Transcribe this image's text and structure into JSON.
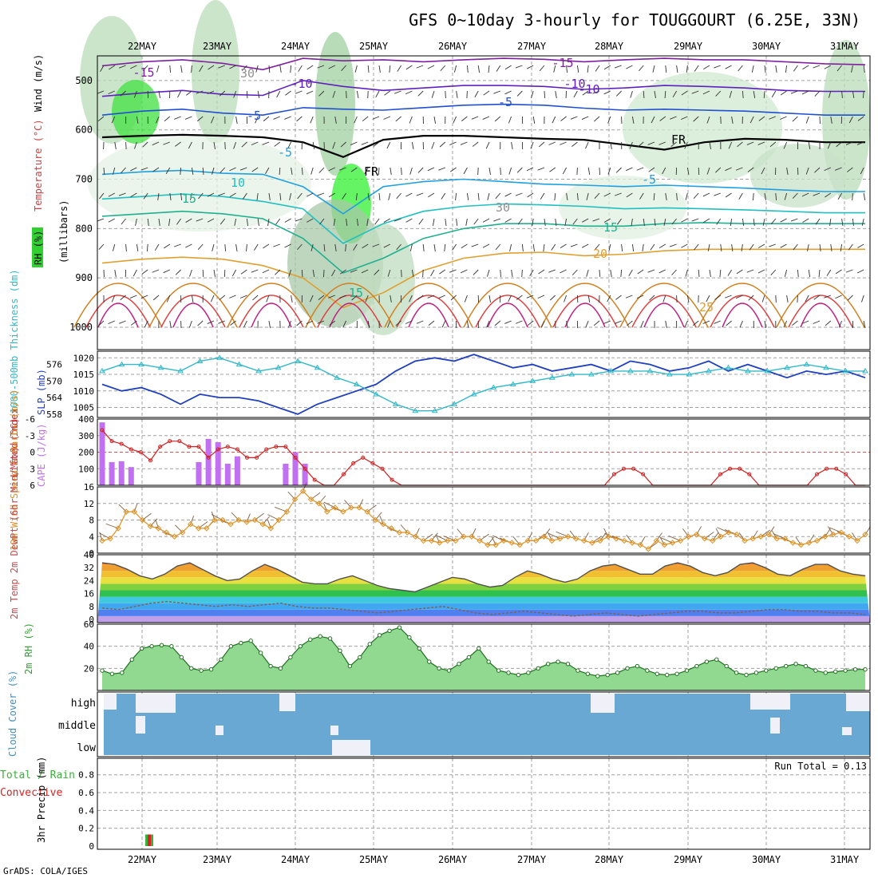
{
  "page": {
    "title": "GFS 0~10day 3-hourly for TOUGGOURT (6.25E, 33N)",
    "credit": "GrADS: COLA/IGES"
  },
  "colors": {
    "frame": "#000000",
    "grid": "#a0a0a0",
    "slp": "#2040c0",
    "thickness": "#30b8c8",
    "cape": "#c070f0",
    "lifted": "#d02020",
    "wind_speed": "#e09020",
    "barb": "#806040",
    "rh_fill": "#5ac85a",
    "rh_light": "#d6ecd6",
    "cloud": "#6aa8d4",
    "precip_total": "#3cb03c",
    "precip_conv": "#e02020"
  },
  "chart_data": [
    {
      "id": "upper-air",
      "type": "heatmap",
      "ylabel_parts": [
        "RH (%)",
        "Temperature (°C)",
        "Wind (m/s)"
      ],
      "axis_label": "(millibars)",
      "x_ticks": [
        "22MAY",
        "23MAY",
        "24MAY",
        "25MAY",
        "26MAY",
        "27MAY",
        "28MAY",
        "29MAY",
        "30MAY",
        "31MAY"
      ],
      "ylim": [
        450,
        1000
      ],
      "yticks": [
        500,
        600,
        700,
        800,
        900,
        1000
      ],
      "contour_labels": [
        "-15",
        "-15",
        "-10",
        "-10",
        "-5",
        "-5",
        "FR",
        "FR",
        "-5",
        "-5",
        "-10",
        "10",
        "15",
        "15",
        "15",
        "20",
        "25",
        "30",
        "30"
      ],
      "isotherms": [
        {
          "label": "-15",
          "color": "#8020a0",
          "p": [
            470,
            462,
            458,
            465,
            478,
            455,
            460,
            458,
            462,
            458,
            455,
            457,
            462,
            458,
            455,
            458,
            458,
            462,
            466,
            468
          ]
        },
        {
          "label": "-10",
          "color": "#6020c0",
          "p": [
            532,
            525,
            520,
            528,
            530,
            500,
            512,
            520,
            515,
            510,
            510,
            512,
            518,
            515,
            510,
            512,
            515,
            520,
            522,
            522
          ]
        },
        {
          "label": "-5",
          "color": "#2050d0",
          "p": [
            570,
            562,
            558,
            566,
            570,
            555,
            558,
            560,
            555,
            550,
            548,
            550,
            556,
            560,
            558,
            560,
            562,
            566,
            570,
            570
          ]
        },
        {
          "label": "FR",
          "color": "#000000",
          "p": [
            615,
            612,
            610,
            612,
            615,
            625,
            655,
            620,
            612,
            612,
            615,
            618,
            620,
            630,
            640,
            625,
            618,
            620,
            625,
            625
          ]
        },
        {
          "label": "-5",
          "color": "#20a0e0",
          "p": [
            690,
            685,
            682,
            688,
            690,
            715,
            770,
            715,
            705,
            700,
            705,
            710,
            712,
            715,
            712,
            715,
            718,
            722,
            725,
            725
          ]
        },
        {
          "label": "10",
          "color": "#20c0c0",
          "p": [
            740,
            735,
            730,
            735,
            745,
            760,
            830,
            790,
            765,
            755,
            750,
            752,
            755,
            760,
            758,
            760,
            762,
            765,
            768,
            768
          ]
        },
        {
          "label": "15",
          "color": "#20b090",
          "p": [
            775,
            770,
            765,
            770,
            780,
            820,
            890,
            860,
            820,
            800,
            790,
            790,
            795,
            795,
            790,
            788,
            790,
            790,
            790,
            790
          ]
        },
        {
          "label": "20",
          "color": "#e0a030",
          "p": [
            870,
            862,
            858,
            862,
            875,
            900,
            960,
            930,
            885,
            860,
            850,
            848,
            855,
            852,
            845,
            842,
            842,
            842,
            842,
            842
          ]
        }
      ]
    },
    {
      "id": "slp-thickness",
      "type": "line",
      "ylabel_left": "1000-500mb Thickness (dm)",
      "ylabel_right": "SLP (mb)",
      "left_ticks": [
        "576",
        "570",
        "564",
        "558"
      ],
      "right_ticks": [
        "1020",
        "1015",
        "1010",
        "1005"
      ],
      "ylim": [
        1002,
        1022
      ],
      "series": [
        {
          "name": "SLP",
          "values": [
            1012,
            1010,
            1011,
            1009,
            1006,
            1009,
            1008,
            1008,
            1007,
            1005,
            1003,
            1006,
            1008,
            1010,
            1012,
            1016,
            1019,
            1020,
            1019,
            1021,
            1019,
            1017,
            1018,
            1016,
            1017,
            1018,
            1016,
            1019,
            1018,
            1016,
            1017,
            1019,
            1016,
            1018,
            1016,
            1014,
            1016,
            1015,
            1016,
            1014
          ]
        },
        {
          "name": "Thickness",
          "values": [
            1016,
            1018,
            1018,
            1017,
            1016,
            1019,
            1020,
            1018,
            1016,
            1017,
            1019,
            1017,
            1014,
            1012,
            1009,
            1006,
            1004,
            1004,
            1006,
            1009,
            1011,
            1012,
            1013,
            1014,
            1015,
            1015,
            1016,
            1016,
            1016,
            1015,
            1015,
            1016,
            1017,
            1016,
            1016,
            1017,
            1018,
            1017,
            1016,
            1016
          ]
        }
      ]
    },
    {
      "id": "cape-lifted",
      "type": "bar",
      "ylabel_left": "Lifted Index",
      "ylabel_right": "CAPE (J/kg)",
      "left_ticks": [
        "-6",
        "-3",
        "0",
        "3",
        "6"
      ],
      "right_ticks": [
        "400",
        "300",
        "200",
        "100"
      ],
      "ylim": [
        0,
        400
      ],
      "cape_values": [
        380,
        140,
        145,
        110,
        0,
        0,
        0,
        0,
        0,
        0,
        140,
        280,
        260,
        130,
        175,
        0,
        0,
        0,
        0,
        130,
        200,
        130,
        0,
        0,
        0,
        0,
        0,
        0,
        0,
        0,
        0,
        0,
        0,
        0,
        0,
        0,
        0,
        0,
        0,
        0,
        0,
        0,
        0,
        0,
        0,
        0,
        0,
        0,
        0,
        0,
        0,
        0,
        0,
        0,
        0,
        0,
        0,
        0,
        0,
        0,
        0,
        0,
        0,
        0,
        0,
        0,
        0,
        0,
        0,
        0,
        0,
        0,
        0,
        0,
        0,
        0,
        0,
        0,
        0,
        0
      ],
      "lifted_index": [
        -4,
        -2,
        -1.5,
        -0.5,
        0,
        1.5,
        -1,
        -2,
        -2,
        -1,
        -1,
        1,
        -0.5,
        -1,
        -0.5,
        1,
        1,
        -0.5,
        -1,
        -1,
        1,
        3,
        5,
        7,
        6,
        4,
        2,
        1,
        2,
        3,
        5,
        7,
        7,
        7,
        7,
        7,
        7,
        7,
        7,
        7,
        7,
        7,
        7,
        7,
        7,
        7,
        7,
        7,
        7,
        7,
        7,
        7,
        6,
        4,
        3,
        3,
        4,
        6,
        7,
        7,
        7,
        7,
        7,
        6,
        4,
        3,
        3,
        4,
        6,
        7,
        7,
        7,
        7,
        6,
        4,
        3,
        3,
        4,
        6,
        7
      ]
    },
    {
      "id": "wind10m",
      "type": "line",
      "ylabel": "10m Wind Speed & Barbs (m/s)",
      "yticks": [
        "16",
        "12",
        "8",
        "4",
        "0"
      ],
      "ylim": [
        0,
        16
      ],
      "values": [
        3,
        3.5,
        6,
        10,
        10,
        8,
        6.5,
        6,
        5,
        4,
        5,
        7,
        6,
        6,
        8,
        8,
        7,
        8,
        7.5,
        8,
        7,
        6,
        8,
        10,
        13,
        15,
        13,
        12,
        10,
        11,
        10,
        11,
        11,
        10,
        8,
        7,
        6,
        5,
        5,
        4,
        3,
        3,
        2.5,
        3,
        3,
        4,
        4,
        3,
        2,
        2,
        3,
        2.5,
        2,
        3,
        3,
        4,
        3,
        3.5,
        4,
        3.5,
        3,
        2.5,
        3,
        4,
        3.5,
        3,
        2.5,
        2,
        1,
        3,
        2,
        2.5,
        3,
        4,
        4.5,
        3.5,
        3,
        4,
        5,
        4.5,
        3,
        3.5,
        4,
        4.5,
        3.5,
        3.5,
        2.5,
        2,
        2.5,
        3,
        4,
        4.5,
        5,
        4,
        3,
        4.5
      ]
    },
    {
      "id": "temp2m",
      "type": "area",
      "ylabel": "2m Temp 2m DewPt (6hr Min/Max) (°C)",
      "yticks": [
        "40",
        "32",
        "24",
        "16",
        "8",
        "0"
      ],
      "ylim": [
        -2,
        40
      ],
      "values": [
        35,
        34,
        31,
        27,
        25,
        28,
        33,
        35,
        31,
        27,
        24,
        25,
        30,
        34,
        31,
        27,
        23,
        22,
        22,
        25,
        27,
        24,
        21,
        19,
        18,
        17,
        20,
        23,
        26,
        25,
        22,
        20,
        21,
        26,
        30,
        28,
        25,
        23,
        25,
        30,
        33,
        34,
        31,
        28,
        28,
        33,
        35,
        33,
        29,
        27,
        29,
        34,
        35,
        32,
        28,
        27,
        31,
        34,
        34,
        30,
        28,
        27
      ],
      "dewpoint": [
        7,
        6,
        8,
        10,
        11,
        10,
        9,
        8,
        9,
        8,
        9,
        10,
        8,
        7,
        7,
        6,
        5,
        4,
        5,
        6,
        7,
        8,
        6,
        4,
        3,
        4,
        5,
        4,
        3,
        2,
        3,
        4,
        3,
        2,
        3,
        4,
        5,
        5,
        4,
        4,
        5,
        6,
        6,
        5,
        5,
        4,
        4,
        3
      ]
    },
    {
      "id": "rh2m",
      "type": "area",
      "ylabel": "2m RH (%)",
      "yticks": [
        "60",
        "40",
        "20"
      ],
      "ylim": [
        0,
        60
      ],
      "values": [
        18,
        15,
        16,
        28,
        38,
        40,
        41,
        40,
        30,
        20,
        18,
        19,
        28,
        40,
        43,
        45,
        34,
        22,
        20,
        30,
        40,
        46,
        49,
        47,
        36,
        22,
        30,
        42,
        50,
        54,
        57,
        48,
        38,
        26,
        20,
        18,
        24,
        30,
        38,
        26,
        18,
        16,
        14,
        16,
        20,
        24,
        26,
        24,
        18,
        15,
        13,
        14,
        16,
        20,
        22,
        18,
        15,
        14,
        15,
        18,
        22,
        26,
        28,
        22,
        16,
        14,
        16,
        18,
        20,
        22,
        24,
        22,
        18,
        16,
        17,
        18,
        19,
        19
      ]
    },
    {
      "id": "cloud-cover",
      "type": "heatmap",
      "ylabel": "Cloud Cover (%)",
      "row_labels": [
        "high",
        "middle",
        "low"
      ]
    },
    {
      "id": "precip",
      "type": "bar",
      "ylabel_left": "Total / Rain Convective",
      "ylabel_right": "3hr Precip (mm)",
      "yticks": [
        "0.8",
        "0.6",
        "0.4",
        "0.2",
        "0"
      ],
      "ylim": [
        0,
        0.95
      ],
      "run_total": "Run Total = 0.13",
      "total_values": [
        0.13
      ],
      "conv_values": [
        0.13
      ]
    }
  ]
}
